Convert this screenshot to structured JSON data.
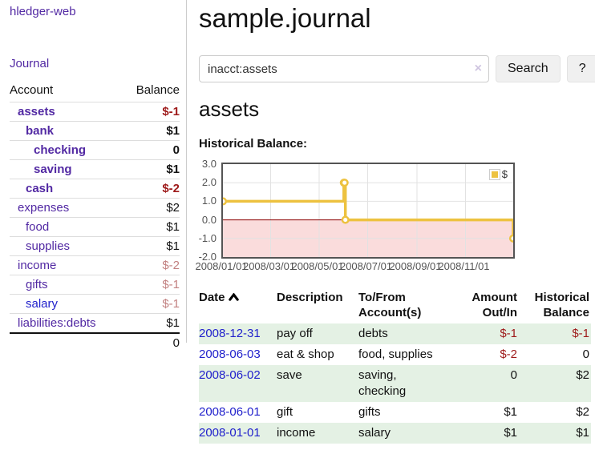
{
  "app": {
    "title": "hledger-web"
  },
  "colors": {
    "link_purple": "#5229a3",
    "link_blue": "#2222cc",
    "negative_strong": "#9e1a1a",
    "negative_soft": "#c28181",
    "row_stripe_green": "#e4f1e4",
    "chart_line": "#edc240",
    "chart_negative_fill": "#fadcdc",
    "chart_zero_line": "#8b0000"
  },
  "sidebar": {
    "journal_link": "Journal",
    "headers": {
      "account": "Account",
      "balance": "Balance"
    },
    "rows": [
      {
        "account": "assets",
        "balance": "$-1",
        "depth": 0,
        "bold": true,
        "neg": "strong"
      },
      {
        "account": "bank",
        "balance": "$1",
        "depth": 1,
        "bold": true,
        "neg": ""
      },
      {
        "account": "checking",
        "balance": "0",
        "depth": 2,
        "bold": true,
        "neg": ""
      },
      {
        "account": "saving",
        "balance": "$1",
        "depth": 2,
        "bold": true,
        "neg": ""
      },
      {
        "account": "cash",
        "balance": "$-2",
        "depth": 1,
        "bold": true,
        "neg": "strong"
      },
      {
        "account": "expenses",
        "balance": "$2",
        "depth": 0,
        "bold": false,
        "neg": ""
      },
      {
        "account": "food",
        "balance": "$1",
        "depth": 1,
        "bold": false,
        "neg": ""
      },
      {
        "account": "supplies",
        "balance": "$1",
        "depth": 1,
        "bold": false,
        "neg": ""
      },
      {
        "account": "income",
        "balance": "$-2",
        "depth": 0,
        "bold": false,
        "neg": "soft"
      },
      {
        "account": "gifts",
        "balance": "$-1",
        "depth": 1,
        "bold": false,
        "neg": "soft"
      },
      {
        "account": "salary",
        "balance": "$-1",
        "depth": 1,
        "bold": false,
        "neg": "soft",
        "link_color": "blue"
      },
      {
        "account": "liabilities:debts",
        "balance": "$1",
        "depth": 0,
        "bold": false,
        "neg": ""
      }
    ],
    "total": "0"
  },
  "main": {
    "title": "sample.journal",
    "search": {
      "value": "inacct:assets",
      "clear_icon": "×",
      "button": "Search",
      "help": "?"
    },
    "account_heading": "assets",
    "chart_heading": "Historical Balance:"
  },
  "chart_data": {
    "type": "line",
    "step": true,
    "title": "Historical Balance:",
    "series": [
      {
        "name": "$",
        "color": "#edc240",
        "points": [
          [
            "2008-01-01",
            1
          ],
          [
            "2008-06-01",
            2
          ],
          [
            "2008-06-02",
            2
          ],
          [
            "2008-06-03",
            0
          ],
          [
            "2008-12-31",
            -1
          ]
        ]
      }
    ],
    "ylim": [
      -2,
      3
    ],
    "yticks": [
      3.0,
      2.0,
      1.0,
      0.0,
      -1.0,
      -2.0
    ],
    "xticks": [
      "2008/01/01",
      "2008/03/01",
      "2008/05/01",
      "2008/07/01",
      "2008/09/01",
      "2008/11/01"
    ],
    "xrange": [
      "2008-01-01",
      "2008-12-31"
    ],
    "grid": true,
    "legend_position": "top-right",
    "negative_fill": "#fadcdc",
    "zero_line_color": "#8b0000"
  },
  "register": {
    "headers": [
      "Date",
      "Description",
      "To/From Account(s)",
      "Amount Out/In",
      "Historical Balance"
    ],
    "rows": [
      {
        "date": "2008-12-31",
        "description": "pay off",
        "accounts": "debts",
        "amount": "$-1",
        "amount_neg": true,
        "balance": "$-1",
        "balance_neg": true
      },
      {
        "date": "2008-06-03",
        "description": "eat & shop",
        "accounts": "food, supplies",
        "amount": "$-2",
        "amount_neg": true,
        "balance": "0",
        "balance_neg": false
      },
      {
        "date": "2008-06-02",
        "description": "save",
        "accounts": "saving, checking",
        "amount": "0",
        "amount_neg": false,
        "balance": "$2",
        "balance_neg": false
      },
      {
        "date": "2008-06-01",
        "description": "gift",
        "accounts": "gifts",
        "amount": "$1",
        "amount_neg": false,
        "balance": "$2",
        "balance_neg": false
      },
      {
        "date": "2008-01-01",
        "description": "income",
        "accounts": "salary",
        "amount": "$1",
        "amount_neg": false,
        "balance": "$1",
        "balance_neg": false
      }
    ]
  }
}
